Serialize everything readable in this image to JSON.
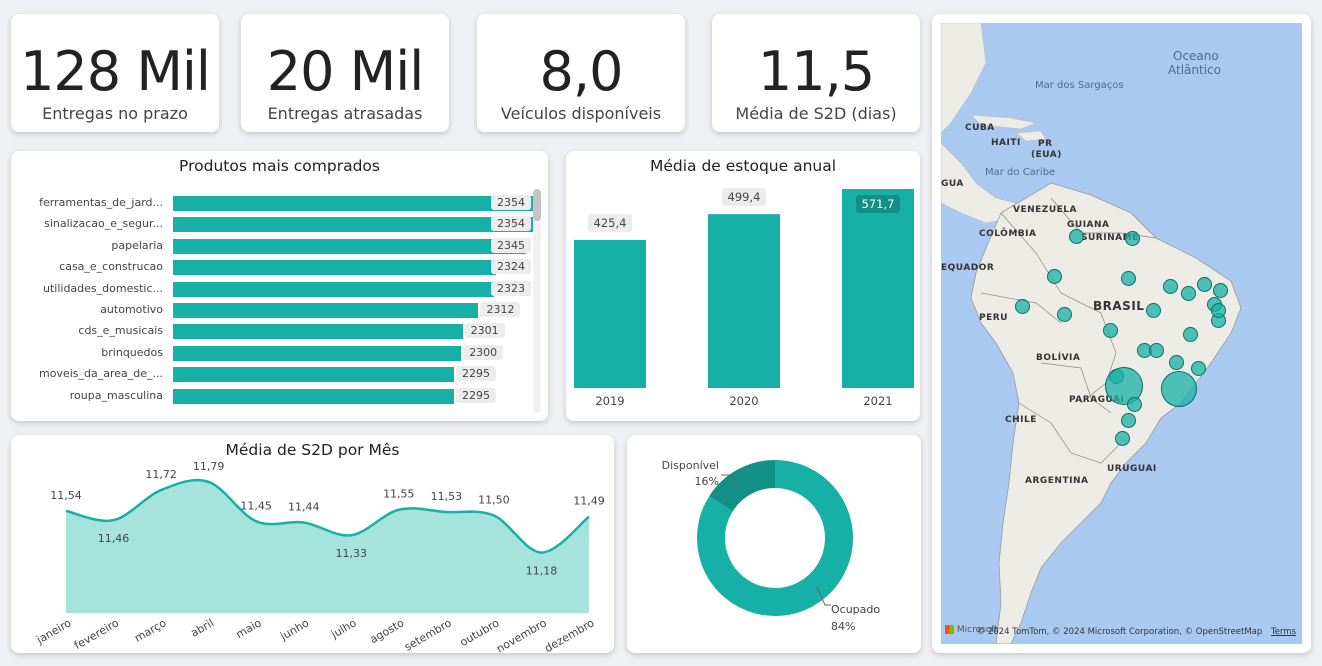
{
  "kpis": [
    {
      "value": "128 Mil",
      "label": "Entregas no prazo"
    },
    {
      "value": "20 Mil",
      "label": "Entregas atrasadas"
    },
    {
      "value": "8,0",
      "label": "Veículos disponíveis"
    },
    {
      "value": "11,5",
      "label": "Média de S2D (dias)"
    }
  ],
  "products": {
    "title": "Produtos mais comprados",
    "chart_data": {
      "type": "bar",
      "orientation": "horizontal",
      "categories": [
        "ferramentas_de_jard...",
        "sinalizacao_e_segur...",
        "papelaria",
        "casa_e_construcao",
        "utilidades_domestic...",
        "automotivo",
        "cds_e_musicais",
        "brinquedos",
        "moveis_da_area_de_...",
        "roupa_masculina"
      ],
      "values": [
        2354,
        2354,
        2345,
        2324,
        2323,
        2312,
        2301,
        2300,
        2295,
        2295
      ],
      "value_labels": [
        "2354",
        "2354",
        "2345",
        "2324",
        "2323",
        "2312",
        "2301",
        "2300",
        "2295",
        "2295"
      ],
      "color": "#17b0a6"
    }
  },
  "stock": {
    "title": "Média de estoque anual",
    "chart_data": {
      "type": "bar",
      "categories": [
        "2019",
        "2020",
        "2021"
      ],
      "values": [
        425.4,
        499.4,
        571.7
      ],
      "value_labels": [
        "425,4",
        "499,4",
        "571,7"
      ],
      "color": "#17b0a6"
    }
  },
  "s2d": {
    "title": "Média de S2D por Mês",
    "chart_data": {
      "type": "area",
      "categories": [
        "janeiro",
        "fevereiro",
        "março",
        "abril",
        "maio",
        "junho",
        "julho",
        "agosto",
        "setembro",
        "outubro",
        "novembro",
        "dezembro"
      ],
      "values": [
        11.54,
        11.46,
        11.72,
        11.79,
        11.45,
        11.44,
        11.33,
        11.55,
        11.53,
        11.5,
        11.18,
        11.49
      ],
      "value_labels": [
        "11,54",
        "11,46",
        "11,72",
        "11,79",
        "11,45",
        "11,44",
        "11,33",
        "11,55",
        "11,53",
        "11,50",
        "11,18",
        "11,49"
      ],
      "line_color": "#17b0a6",
      "fill_color": "#a6e3dd"
    }
  },
  "donut": {
    "chart_data": {
      "type": "pie",
      "style": "donut",
      "slices": [
        {
          "name": "Disponível",
          "percent": 16,
          "label": "16%",
          "color": "#128f87"
        },
        {
          "name": "Ocupado",
          "percent": 84,
          "label": "84%",
          "color": "#17b0a6"
        }
      ]
    }
  },
  "map": {
    "seas": [
      "Oceano",
      "Atlântico",
      "Mar dos Sargaços",
      "Mar do Caribe"
    ],
    "countries": [
      "CUBA",
      "HAITI",
      "PR",
      "(EUA)",
      "GUA",
      "VENEZUELA",
      "GUIANA",
      "SURINAME",
      "COLÔMBIA",
      "EQUADOR",
      "BRASIL",
      "PERU",
      "BOLÍVIA",
      "PARAGUAI",
      "CHILE",
      "URUGUAI",
      "ARGENTINA"
    ],
    "attribution": "© 2024 TomTom, © 2024 Microsoft Corporation, © OpenStreetMap",
    "terms": "Terms",
    "logo": "Microsoft"
  }
}
